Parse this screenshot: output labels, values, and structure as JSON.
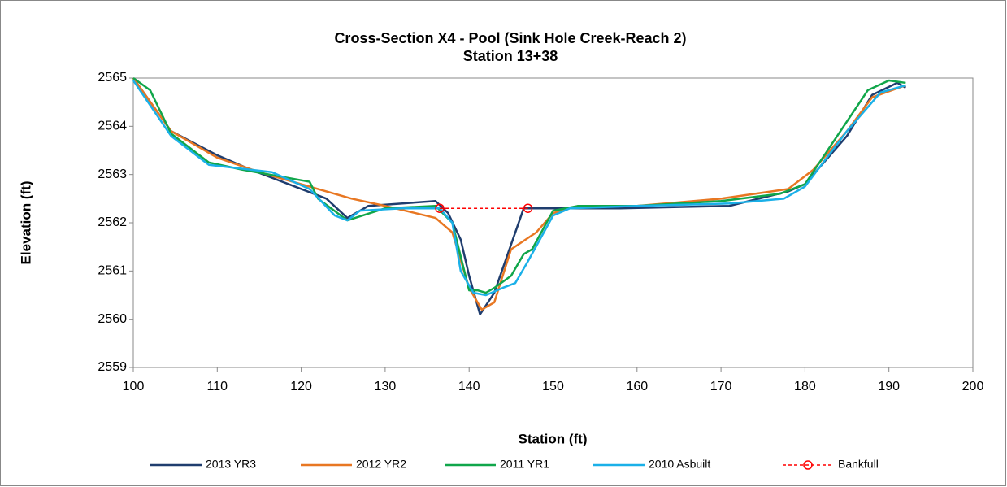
{
  "chart_data": {
    "type": "line",
    "title": "Cross-Section X4 - Pool (Sink Hole Creek-Reach 2)",
    "subtitle": "Station 13+38",
    "x_label": "Station (ft)",
    "y_label": "Elevation (ft)",
    "xlim": [
      100,
      200
    ],
    "xticks": [
      100,
      110,
      120,
      130,
      140,
      150,
      160,
      170,
      180,
      190,
      200
    ],
    "ylim": [
      2559,
      2565
    ],
    "yticks": [
      2559,
      2560,
      2561,
      2562,
      2563,
      2564,
      2565
    ],
    "grid": false,
    "legend": "bottom",
    "series": [
      {
        "name": "2013 YR3",
        "color": "#1f3d6e",
        "x": [
          100,
          104.5,
          110,
          114,
          120,
          123,
          125.5,
          128,
          136,
          137.5,
          139,
          140,
          141.3,
          143,
          145,
          146.5,
          150,
          158,
          171,
          178,
          180,
          185,
          188,
          191,
          192
        ],
        "values": [
          2565,
          2563.9,
          2563.4,
          2563.1,
          2562.7,
          2562.5,
          2562.1,
          2562.35,
          2562.45,
          2562.2,
          2561.65,
          2560.9,
          2560.1,
          2560.55,
          2561.55,
          2562.3,
          2562.3,
          2562.3,
          2562.35,
          2562.65,
          2562.8,
          2563.8,
          2564.65,
          2564.9,
          2564.8
        ]
      },
      {
        "name": "2012 YR2",
        "color": "#e87722",
        "x": [
          100,
          104.5,
          110,
          115,
          120,
          126,
          130,
          136,
          138,
          140,
          141.5,
          143,
          145,
          148,
          150,
          153,
          160,
          170,
          178,
          181,
          185,
          188,
          192
        ],
        "values": [
          2565,
          2563.9,
          2563.35,
          2563.05,
          2562.8,
          2562.5,
          2562.35,
          2562.1,
          2561.8,
          2560.65,
          2560.2,
          2560.35,
          2561.45,
          2561.8,
          2562.2,
          2562.35,
          2562.35,
          2562.5,
          2562.7,
          2563.1,
          2563.9,
          2564.6,
          2564.85
        ]
      },
      {
        "name": "2011 YR1",
        "color": "#10a64a",
        "x": [
          100,
          102,
          104.5,
          109,
          113,
          121,
          122,
          125.5,
          130,
          136,
          138,
          140,
          141,
          142,
          143,
          145,
          146.5,
          147.5,
          150,
          153,
          160,
          170,
          177,
          180,
          187.5,
          190,
          192
        ],
        "values": [
          2565,
          2564.75,
          2563.85,
          2563.25,
          2563.1,
          2562.85,
          2562.5,
          2562.05,
          2562.3,
          2562.35,
          2562.0,
          2560.6,
          2560.6,
          2560.55,
          2560.65,
          2560.9,
          2561.35,
          2561.45,
          2562.25,
          2562.35,
          2562.35,
          2562.45,
          2562.6,
          2562.8,
          2564.75,
          2564.95,
          2564.9
        ]
      },
      {
        "name": "2010 Asbuilt",
        "color": "#1ab0e8",
        "x": [
          100,
          104.5,
          109,
          116.5,
          121,
          124,
          125.5,
          127,
          132,
          136.5,
          138,
          139,
          140.5,
          142,
          144,
          145.5,
          147,
          150,
          152,
          160,
          171,
          177.5,
          180,
          185,
          189,
          192
        ],
        "values": [
          2564.95,
          2563.8,
          2563.2,
          2563.05,
          2562.7,
          2562.15,
          2562.05,
          2562.25,
          2562.3,
          2562.3,
          2562.0,
          2561.0,
          2560.55,
          2560.5,
          2560.65,
          2560.75,
          2561.2,
          2562.15,
          2562.3,
          2562.35,
          2562.4,
          2562.5,
          2562.75,
          2563.9,
          2564.7,
          2564.85
        ]
      },
      {
        "name": "Bankfull",
        "color": "#ff0000",
        "dashed": true,
        "marker": "circle-open",
        "x": [
          136.5,
          147
        ],
        "values": [
          2562.3,
          2562.3
        ]
      }
    ]
  }
}
